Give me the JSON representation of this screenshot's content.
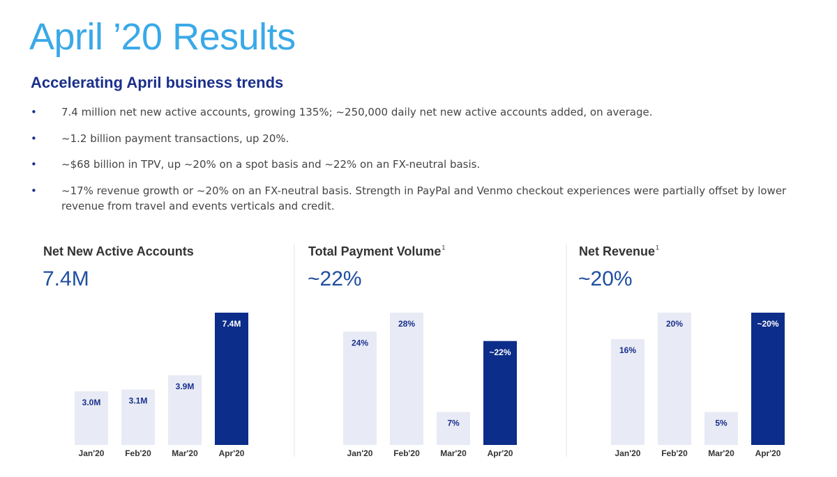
{
  "title": "April ’20 Results",
  "subtitle": "Accelerating April business trends",
  "bullets": [
    "7.4 million net new active accounts, growing 135%; ~250,000 daily net new active accounts added, on average.",
    "~1.2 billion payment transactions, up 20%.",
    "~$68 billion in TPV, up ~20% on a spot basis and ~22% on an FX-neutral basis.",
    "~17% revenue growth or ~20% on an FX-neutral basis. Strength in PayPal and Venmo checkout experiences were partially offset by lower revenue from travel and events verticals and credit."
  ],
  "chart_data": [
    {
      "type": "bar",
      "title": "Net New Active Accounts",
      "headline": "7.4M",
      "categories": [
        "Jan'20",
        "Feb'20",
        "Mar'20",
        "Apr'20"
      ],
      "values": [
        3.0,
        3.1,
        3.9,
        7.4
      ],
      "value_labels": [
        "3.0M",
        "3.1M",
        "3.9M",
        "7.4M"
      ],
      "colors": [
        "#e8ebf5",
        "#e8ebf5",
        "#e8ebf5",
        "#0d2d8a"
      ]
    },
    {
      "type": "bar",
      "title": "Total Payment Volume",
      "title_note": "1",
      "headline": "~22%",
      "categories": [
        "Jan'20",
        "Feb'20",
        "Mar'20",
        "Apr'20"
      ],
      "values": [
        24,
        28,
        7,
        22
      ],
      "value_labels": [
        "24%",
        "28%",
        "7%",
        "~22%"
      ],
      "colors": [
        "#e8ebf5",
        "#e8ebf5",
        "#e8ebf5",
        "#0d2d8a"
      ]
    },
    {
      "type": "bar",
      "title": "Net Revenue",
      "title_note": "1",
      "headline": "~20%",
      "categories": [
        "Jan'20",
        "Feb'20",
        "Mar'20",
        "Apr'20"
      ],
      "values": [
        16,
        20,
        5,
        20
      ],
      "value_labels": [
        "16%",
        "20%",
        "5%",
        "~20%"
      ],
      "colors": [
        "#e8ebf5",
        "#e8ebf5",
        "#e8ebf5",
        "#0d2d8a"
      ]
    }
  ]
}
